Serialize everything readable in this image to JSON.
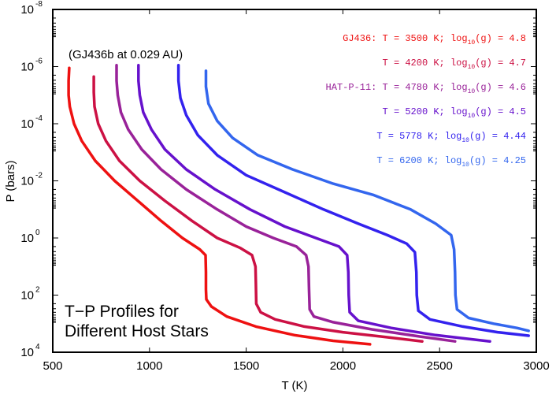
{
  "chart_data": {
    "type": "line",
    "title_lines": [
      "T−P Profiles for",
      "Different Host Stars"
    ],
    "annotation": "(GJ436b at 0.029 AU)",
    "xlabel": "T (K)",
    "ylabel": "P (bars)",
    "xlim": [
      500,
      3000
    ],
    "ylim_log10": [
      -8,
      4
    ],
    "y_inverted": true,
    "y_scale": "log",
    "x_ticks": [
      500,
      1000,
      1500,
      2000,
      2500,
      3000
    ],
    "y_tick_exponents": [
      "-8",
      "-6",
      "-4",
      "-2",
      "0",
      "2",
      "4"
    ],
    "y_tick_base": "10",
    "legend_position": "top-right",
    "series": [
      {
        "name": "GJ436",
        "color": "#ee1111",
        "legend": {
          "prefix": "GJ436: T = 3500 K; log",
          "sub": "10",
          "suffix": "(g) = 4.8"
        },
        "points": [
          [
            585,
            -5.95
          ],
          [
            582,
            -5.5
          ],
          [
            582,
            -5.0
          ],
          [
            588,
            -4.6
          ],
          [
            610,
            -4.0
          ],
          [
            650,
            -3.4
          ],
          [
            720,
            -2.7
          ],
          [
            820,
            -2.0
          ],
          [
            940,
            -1.3
          ],
          [
            1060,
            -0.6
          ],
          [
            1170,
            0.0
          ],
          [
            1260,
            0.4
          ],
          [
            1290,
            0.6
          ],
          [
            1292,
            1.2
          ],
          [
            1292,
            1.8
          ],
          [
            1294,
            2.15
          ],
          [
            1320,
            2.4
          ],
          [
            1400,
            2.75
          ],
          [
            1550,
            3.1
          ],
          [
            1750,
            3.4
          ],
          [
            1950,
            3.6
          ],
          [
            2140,
            3.72
          ]
        ]
      },
      {
        "name": "T4200",
        "color": "#cc1144",
        "legend": {
          "prefix": "T = 4200 K; log",
          "sub": "10",
          "suffix": "(g) = 4.7"
        },
        "points": [
          [
            712,
            -5.65
          ],
          [
            712,
            -5.1
          ],
          [
            716,
            -4.6
          ],
          [
            735,
            -4.0
          ],
          [
            775,
            -3.4
          ],
          [
            845,
            -2.7
          ],
          [
            950,
            -2.0
          ],
          [
            1080,
            -1.3
          ],
          [
            1220,
            -0.6
          ],
          [
            1350,
            0.0
          ],
          [
            1470,
            0.35
          ],
          [
            1530,
            0.6
          ],
          [
            1548,
            1.0
          ],
          [
            1550,
            1.6
          ],
          [
            1552,
            2.3
          ],
          [
            1575,
            2.6
          ],
          [
            1650,
            2.85
          ],
          [
            1800,
            3.1
          ],
          [
            2000,
            3.3
          ],
          [
            2200,
            3.45
          ],
          [
            2410,
            3.62
          ]
        ]
      },
      {
        "name": "HAT-P-11",
        "color": "#992299",
        "legend": {
          "prefix": "HAT-P-11: T = 4780 K; log",
          "sub": "10",
          "suffix": "(g) = 4.6"
        },
        "points": [
          [
            830,
            -6.05
          ],
          [
            830,
            -5.5
          ],
          [
            836,
            -5.0
          ],
          [
            852,
            -4.4
          ],
          [
            890,
            -3.8
          ],
          [
            960,
            -3.1
          ],
          [
            1060,
            -2.4
          ],
          [
            1190,
            -1.7
          ],
          [
            1350,
            -1.0
          ],
          [
            1500,
            -0.4
          ],
          [
            1640,
            0.0
          ],
          [
            1760,
            0.3
          ],
          [
            1810,
            0.6
          ],
          [
            1822,
            1.0
          ],
          [
            1825,
            1.8
          ],
          [
            1828,
            2.5
          ],
          [
            1850,
            2.75
          ],
          [
            1950,
            2.95
          ],
          [
            2150,
            3.2
          ],
          [
            2400,
            3.45
          ],
          [
            2580,
            3.62
          ]
        ]
      },
      {
        "name": "T5200",
        "color": "#6611cc",
        "legend": {
          "prefix": "T = 5200 K; log",
          "sub": "10",
          "suffix": "(g) = 4.5"
        },
        "points": [
          [
            943,
            -6.05
          ],
          [
            943,
            -5.5
          ],
          [
            950,
            -5.0
          ],
          [
            968,
            -4.4
          ],
          [
            1010,
            -3.8
          ],
          [
            1080,
            -3.1
          ],
          [
            1190,
            -2.4
          ],
          [
            1340,
            -1.7
          ],
          [
            1520,
            -1.0
          ],
          [
            1700,
            -0.4
          ],
          [
            1860,
            0.0
          ],
          [
            1980,
            0.3
          ],
          [
            2022,
            0.6
          ],
          [
            2028,
            1.2
          ],
          [
            2030,
            2.0
          ],
          [
            2035,
            2.6
          ],
          [
            2080,
            2.9
          ],
          [
            2250,
            3.15
          ],
          [
            2480,
            3.4
          ],
          [
            2760,
            3.62
          ]
        ]
      },
      {
        "name": "T5778",
        "color": "#3322ee",
        "legend": {
          "prefix": "T = 5778 K; log",
          "sub": "10",
          "suffix": "(g) = 4.44"
        },
        "points": [
          [
            1150,
            -6.05
          ],
          [
            1150,
            -5.5
          ],
          [
            1160,
            -4.9
          ],
          [
            1190,
            -4.3
          ],
          [
            1250,
            -3.6
          ],
          [
            1350,
            -2.9
          ],
          [
            1500,
            -2.2
          ],
          [
            1700,
            -1.6
          ],
          [
            1900,
            -1.0
          ],
          [
            2080,
            -0.5
          ],
          [
            2230,
            -0.1
          ],
          [
            2330,
            0.2
          ],
          [
            2372,
            0.5
          ],
          [
            2380,
            1.2
          ],
          [
            2382,
            2.0
          ],
          [
            2390,
            2.55
          ],
          [
            2450,
            2.85
          ],
          [
            2620,
            3.1
          ],
          [
            2800,
            3.3
          ],
          [
            2960,
            3.42
          ]
        ]
      },
      {
        "name": "T6200",
        "color": "#3366ee",
        "legend": {
          "prefix": "T = 6200 K; log",
          "sub": "10",
          "suffix": "(g) = 4.25"
        },
        "points": [
          [
            1292,
            -5.85
          ],
          [
            1292,
            -5.3
          ],
          [
            1305,
            -4.7
          ],
          [
            1350,
            -4.1
          ],
          [
            1430,
            -3.5
          ],
          [
            1560,
            -2.9
          ],
          [
            1740,
            -2.4
          ],
          [
            1950,
            -1.9
          ],
          [
            2160,
            -1.5
          ],
          [
            2350,
            -1.0
          ],
          [
            2480,
            -0.5
          ],
          [
            2560,
            -0.1
          ],
          [
            2575,
            0.4
          ],
          [
            2580,
            1.2
          ],
          [
            2582,
            2.0
          ],
          [
            2590,
            2.5
          ],
          [
            2650,
            2.8
          ],
          [
            2780,
            3.0
          ],
          [
            2900,
            3.15
          ],
          [
            2960,
            3.25
          ]
        ]
      }
    ]
  }
}
